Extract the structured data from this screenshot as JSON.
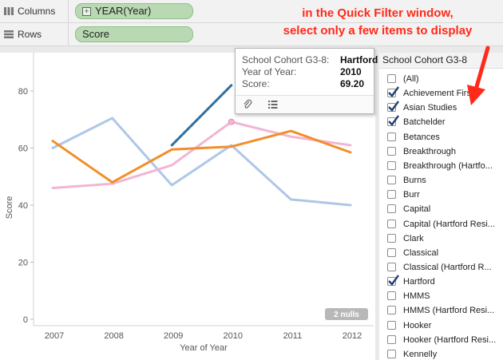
{
  "shelves": {
    "columns": {
      "label": "Columns",
      "pill": "YEAR(Year)"
    },
    "rows": {
      "label": "Rows",
      "pill": "Score"
    }
  },
  "annotation": {
    "line1": "in the Quick Filter window,",
    "line2": "select only a few items to display",
    "color": "#ff2a1a"
  },
  "tooltip": {
    "rows": [
      {
        "label": "School Cohort G3-8:",
        "value": "Hartford"
      },
      {
        "label": "Year of Year:",
        "value": "2010"
      },
      {
        "label": "Score:",
        "value": "69.20"
      }
    ],
    "icons": [
      "paperclip-icon",
      "data-table-icon"
    ]
  },
  "chart_data": {
    "type": "line",
    "x": [
      2007,
      2008,
      2009,
      2010,
      2011,
      2012
    ],
    "xlabel": "Year of Year",
    "ylabel": "Score",
    "ylim": [
      0,
      90
    ],
    "yticks": [
      0,
      20,
      40,
      60,
      80
    ],
    "grid": false,
    "nulls_badge": "2 nulls",
    "series": [
      {
        "color": "#aec7e8",
        "width": 3,
        "values": [
          60,
          70.5,
          47,
          61,
          42,
          40
        ]
      },
      {
        "color": "#f2b5d3",
        "width": 3,
        "values": [
          46,
          47.5,
          54,
          69.2,
          64,
          61
        ]
      },
      {
        "color": "#f28e2b",
        "width": 3,
        "values": [
          62.5,
          48,
          59.5,
          60.5,
          66,
          58.5
        ]
      },
      {
        "color": "#2f6f9f",
        "width": 3,
        "values": [
          null,
          null,
          61,
          82,
          null,
          null
        ]
      }
    ]
  },
  "filter": {
    "title": "School Cohort G3-8",
    "items": [
      {
        "label": "(All)",
        "checked": false
      },
      {
        "label": "Achievement First",
        "checked": true
      },
      {
        "label": "Asian Studies",
        "checked": true
      },
      {
        "label": "Batchelder",
        "checked": true
      },
      {
        "label": "Betances",
        "checked": false
      },
      {
        "label": "Breakthrough",
        "checked": false
      },
      {
        "label": "Breakthrough (Hartfo...",
        "checked": false
      },
      {
        "label": "Burns",
        "checked": false
      },
      {
        "label": "Burr",
        "checked": false
      },
      {
        "label": "Capital",
        "checked": false
      },
      {
        "label": "Capital (Hartford Resi...",
        "checked": false
      },
      {
        "label": "Clark",
        "checked": false
      },
      {
        "label": "Classical",
        "checked": false
      },
      {
        "label": "Classical (Hartford R...",
        "checked": false
      },
      {
        "label": "Hartford",
        "checked": true
      },
      {
        "label": "HMMS",
        "checked": false
      },
      {
        "label": "HMMS (Hartford Resi...",
        "checked": false
      },
      {
        "label": "Hooker",
        "checked": false
      },
      {
        "label": "Hooker (Hartford Resi...",
        "checked": false
      },
      {
        "label": "Kennelly",
        "checked": false
      }
    ]
  }
}
